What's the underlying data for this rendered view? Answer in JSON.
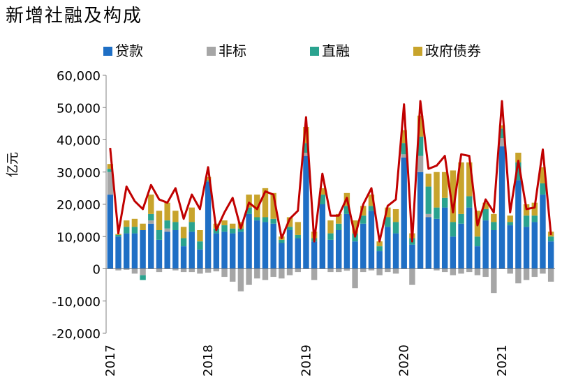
{
  "title": "新增社融及构成",
  "colors": {
    "loans": "#1f6fc5",
    "nonstandard": "#a6a6a6",
    "directfin": "#2aa38f",
    "govbonds": "#c8a42c",
    "total": "#c00000"
  },
  "chart_data": {
    "type": "bar",
    "stacked": true,
    "title": "新增社融及构成",
    "ylabel": "亿元",
    "ylim": [
      -20000,
      60000
    ],
    "yticks": [
      -20000,
      -10000,
      0,
      10000,
      20000,
      30000,
      40000,
      50000,
      60000
    ],
    "ytick_labels": [
      "-20,000",
      "-10,000",
      "0",
      "10,000",
      "20,000",
      "30,000",
      "40,000",
      "50,000",
      "60,000"
    ],
    "grid": false,
    "legend_position": "top",
    "x_tick_labels": [
      "2017",
      "2018",
      "2019",
      "2020",
      "2021"
    ],
    "x_tick_index": [
      0,
      12,
      24,
      36,
      48
    ],
    "categories": [
      "2017-01",
      "2017-02",
      "2017-03",
      "2017-04",
      "2017-05",
      "2017-06",
      "2017-07",
      "2017-08",
      "2017-09",
      "2017-10",
      "2017-11",
      "2017-12",
      "2018-01",
      "2018-02",
      "2018-03",
      "2018-04",
      "2018-05",
      "2018-06",
      "2018-07",
      "2018-08",
      "2018-09",
      "2018-10",
      "2018-11",
      "2018-12",
      "2019-01",
      "2019-02",
      "2019-03",
      "2019-04",
      "2019-05",
      "2019-06",
      "2019-07",
      "2019-08",
      "2019-09",
      "2019-10",
      "2019-11",
      "2019-12",
      "2020-01",
      "2020-02",
      "2020-03",
      "2020-04",
      "2020-05",
      "2020-06",
      "2020-07",
      "2020-08",
      "2020-09",
      "2020-10",
      "2020-11",
      "2020-12",
      "2021-01",
      "2021-02",
      "2021-03",
      "2021-04",
      "2021-05",
      "2021-06",
      "2021-07"
    ],
    "series": [
      {
        "name": "贷款",
        "values": [
          23000,
          10000,
          11000,
          11000,
          12000,
          14000,
          9000,
          11500,
          12000,
          7000,
          11500,
          6000,
          27000,
          11000,
          11500,
          11000,
          11500,
          17000,
          15000,
          14500,
          14000,
          8000,
          12000,
          9500,
          35000,
          8500,
          20000,
          9000,
          12000,
          17000,
          8500,
          14000,
          18000,
          5500,
          13000,
          11000,
          34500,
          7500,
          30000,
          16000,
          15500,
          19000,
          10000,
          14000,
          19000,
          7000,
          15000,
          12000,
          38000,
          13500,
          27500,
          13000,
          14500,
          23000,
          8500
        ]
      },
      {
        "name": "非标",
        "values": [
          7000,
          -500,
          -300,
          -1500,
          -2000,
          1000,
          -1000,
          1000,
          -500,
          -1000,
          -1000,
          -1500,
          -1200,
          -800,
          -2500,
          -4000,
          -7000,
          -5000,
          -3000,
          -3500,
          -2500,
          -3000,
          -2000,
          -1000,
          1000,
          -3500,
          0,
          -1000,
          -1000,
          -600,
          -6000,
          -1000,
          -500,
          -2000,
          -1000,
          -1500,
          1000,
          -5000,
          5000,
          1000,
          -500,
          -1000,
          -2000,
          -1500,
          -1000,
          -2000,
          -2500,
          -7500,
          2500,
          -1500,
          -4500,
          -3500,
          -2500,
          -1500,
          -4000
        ]
      },
      {
        "name": "直融",
        "values": [
          1000,
          500,
          2000,
          2000,
          -1500,
          2000,
          3000,
          2500,
          2500,
          2500,
          3000,
          2500,
          500,
          1500,
          2000,
          1500,
          1000,
          2000,
          1000,
          1500,
          1500,
          1000,
          1000,
          1000,
          3000,
          1000,
          3000,
          2000,
          2000,
          2500,
          2500,
          2500,
          1500,
          1500,
          3000,
          3500,
          3500,
          2000,
          6000,
          8500,
          3500,
          3000,
          4500,
          3000,
          3500,
          3000,
          3500,
          2500,
          3000,
          1000,
          5500,
          3500,
          2000,
          3500,
          1500
        ]
      },
      {
        "name": "政府债券",
        "values": [
          1500,
          300,
          2000,
          2500,
          2000,
          6000,
          6000,
          5500,
          3500,
          3500,
          4500,
          3500,
          1000,
          1500,
          1500,
          1500,
          2000,
          4000,
          7000,
          9000,
          8000,
          1000,
          3000,
          4000,
          5000,
          2000,
          2000,
          4000,
          3000,
          4000,
          4000,
          3000,
          3500,
          1500,
          3000,
          4000,
          4000,
          1500,
          6500,
          4000,
          11000,
          8000,
          16000,
          16000,
          10500,
          8000,
          2000,
          2500,
          1000,
          2000,
          3000,
          3500,
          4000,
          5000,
          1500
        ]
      }
    ],
    "total": {
      "name": "新增社融",
      "values": [
        37500,
        11000,
        25500,
        21000,
        18500,
        26000,
        21500,
        20500,
        25000,
        15500,
        23000,
        18500,
        31500,
        12000,
        17500,
        22000,
        12500,
        20500,
        18500,
        24000,
        23000,
        9500,
        15500,
        18000,
        47000,
        8500,
        29500,
        16500,
        16500,
        22000,
        10000,
        20000,
        25000,
        8500,
        19500,
        21500,
        51000,
        8500,
        52000,
        31000,
        32000,
        35000,
        17500,
        35500,
        35000,
        13500,
        21500,
        17500,
        52000,
        17500,
        33500,
        18500,
        19000,
        37000,
        10500
      ]
    }
  }
}
